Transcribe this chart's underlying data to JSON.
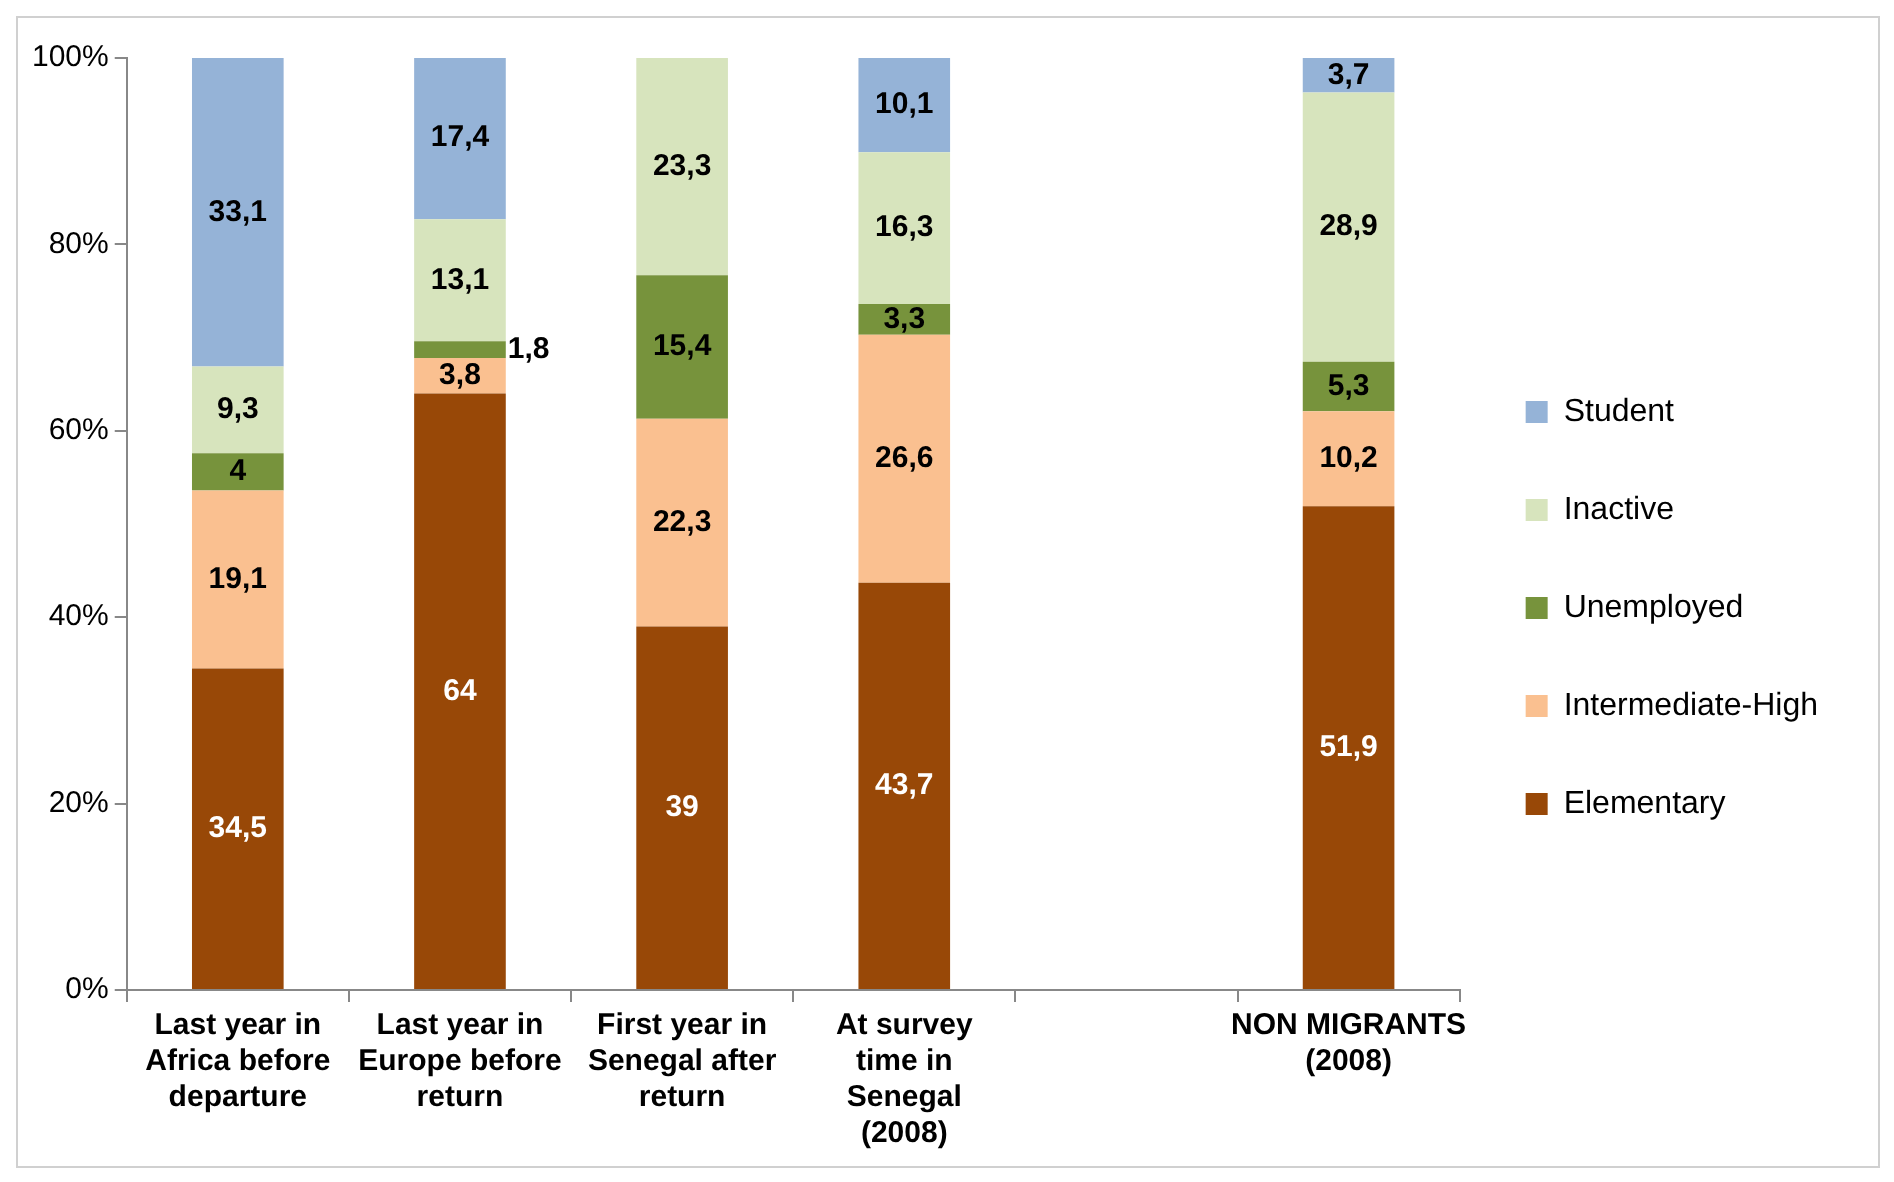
{
  "chart_data": {
    "type": "bar",
    "stacked": true,
    "categories": [
      "Last year in Africa before departure",
      "Last year in Europe before return",
      "First year in Senegal after return",
      "At survey time in Senegal (2008)",
      null,
      "NON MIGRANTS (2008)"
    ],
    "series": [
      {
        "name": "Elementary",
        "color": "#984807",
        "values": [
          34.5,
          64,
          39,
          43.7,
          null,
          51.9
        ],
        "value_labels": [
          "34,5",
          "64",
          "39",
          "43,7",
          null,
          "51,9"
        ]
      },
      {
        "name": "Intermediate-High",
        "color": "#fac090",
        "values": [
          19.1,
          3.8,
          22.3,
          26.6,
          null,
          10.2
        ],
        "value_labels": [
          "19,1",
          "3,8",
          "22,3",
          "26,6",
          null,
          "10,2"
        ]
      },
      {
        "name": "Unemployed",
        "color": "#77933c",
        "values": [
          4,
          1.8,
          15.4,
          3.3,
          null,
          5.3
        ],
        "value_labels": [
          "4",
          "1,8",
          "15,4",
          "3,3",
          null,
          "5,3"
        ]
      },
      {
        "name": "Inactive",
        "color": "#d7e4bd",
        "values": [
          9.3,
          13.1,
          23.3,
          16.3,
          null,
          28.9
        ],
        "value_labels": [
          "9,3",
          "13,1",
          "23,3",
          "16,3",
          null,
          "28,9"
        ]
      },
      {
        "name": "Student",
        "color": "#95b3d7",
        "values": [
          33.1,
          17.4,
          null,
          10.1,
          null,
          3.7
        ],
        "value_labels": [
          "33,1",
          "17,4",
          null,
          "10,1",
          null,
          "3,7"
        ]
      }
    ],
    "ylim": [
      0,
      100
    ],
    "yticks": [
      {
        "value": 0,
        "label": "0%"
      },
      {
        "value": 20,
        "label": "20%"
      },
      {
        "value": 40,
        "label": "40%"
      },
      {
        "value": 60,
        "label": "60%"
      },
      {
        "value": 80,
        "label": "80%"
      },
      {
        "value": 100,
        "label": "100%"
      }
    ],
    "grid": false,
    "legend": "right"
  }
}
